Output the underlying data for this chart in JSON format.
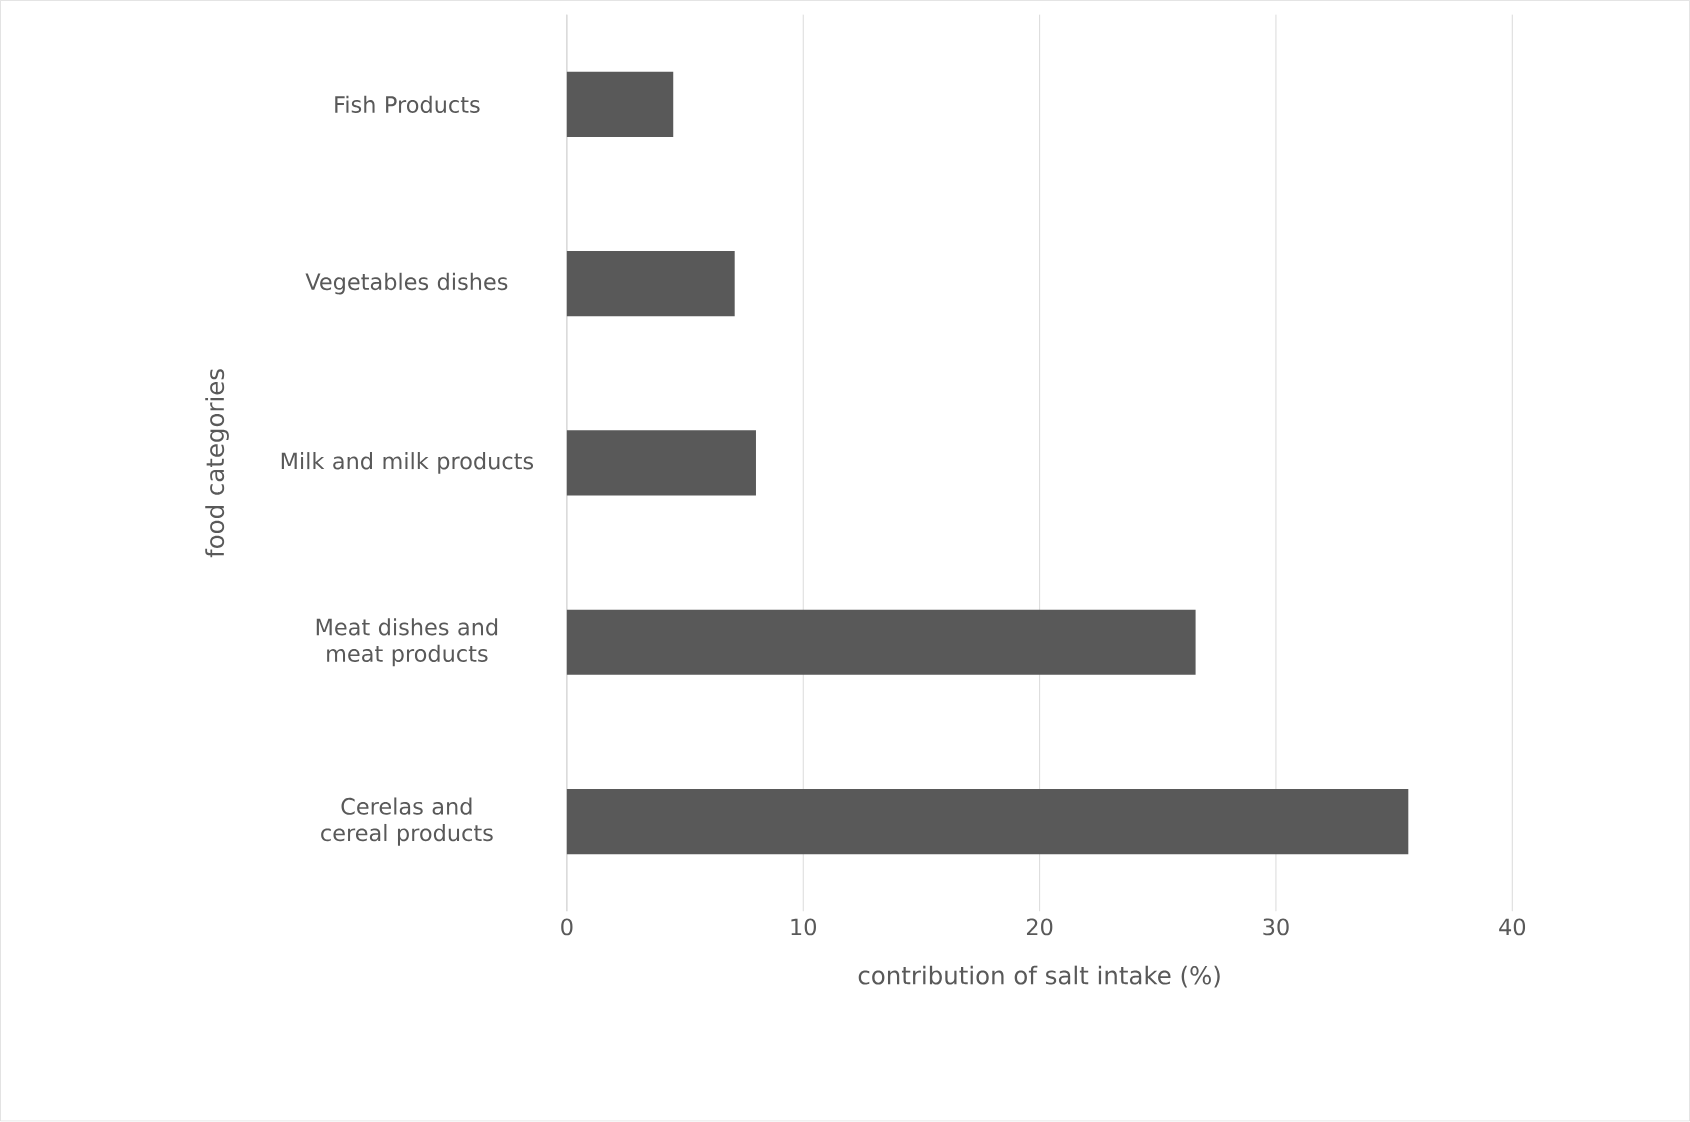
{
  "chart_data": {
    "type": "bar",
    "orientation": "horizontal",
    "categories": [
      "Fish Products",
      "Vegetables dishes",
      "Milk and milk products",
      "Meat dishes and meat products",
      "Cerelas and cereal products"
    ],
    "values": [
      4.5,
      7.1,
      8.0,
      26.6,
      35.6
    ],
    "color": "#595959",
    "xlabel": "contribution of salt intake (%)",
    "ylabel": "food categories",
    "xlim": [
      0,
      40
    ],
    "xticks": [
      0,
      10,
      20,
      30,
      40
    ],
    "grid": "x"
  }
}
